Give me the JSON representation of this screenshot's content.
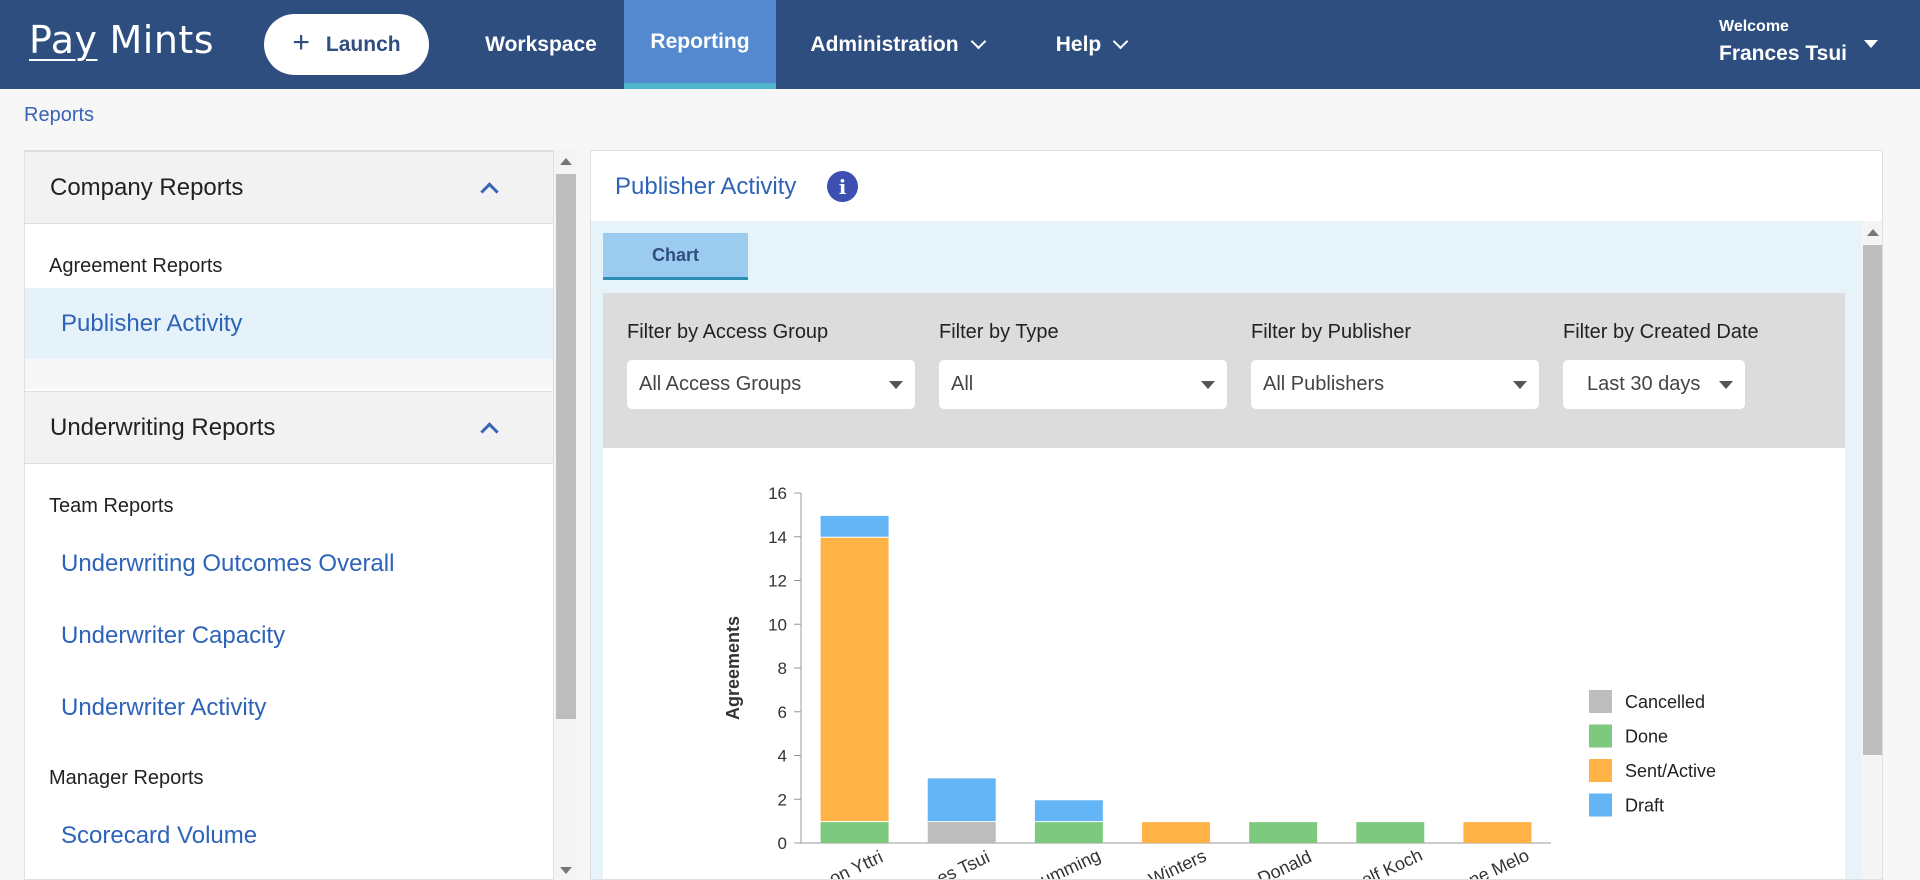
{
  "app": {
    "logo_pay": "Pay",
    "logo_mints": "Mints"
  },
  "header": {
    "launch_label": "Launch",
    "nav": [
      {
        "label": "Workspace"
      },
      {
        "label": "Reporting"
      },
      {
        "label": "Administration"
      },
      {
        "label": "Help"
      }
    ],
    "welcome_label": "Welcome",
    "user_name": "Frances Tsui"
  },
  "breadcrumb": "Reports",
  "sidebar": {
    "sections": [
      {
        "title": "Company Reports",
        "groups": [
          {
            "label": "Agreement Reports",
            "items": [
              "Publisher Activity"
            ]
          }
        ]
      },
      {
        "title": "Underwriting Reports",
        "groups": [
          {
            "label": "Team Reports",
            "items": [
              "Underwriting Outcomes Overall",
              "Underwriter Capacity",
              "Underwriter Activity"
            ]
          },
          {
            "label": "Manager Reports",
            "items": [
              "Scorecard Volume"
            ]
          }
        ]
      }
    ]
  },
  "report": {
    "title": "Publisher Activity",
    "info_icon": "i",
    "tab_label": "Chart",
    "filters": [
      {
        "label": "Filter by Access Group",
        "value": "All Access Groups"
      },
      {
        "label": "Filter by Type",
        "value": "All"
      },
      {
        "label": "Filter by Publisher",
        "value": "All Publishers"
      },
      {
        "label": "Filter by Created Date",
        "value": "Last 30 days"
      }
    ]
  },
  "colors": {
    "nav_bg": "#2e4e80",
    "nav_active": "#5589cf",
    "link": "#2e63b8",
    "cancelled": "#bdbdbd",
    "done": "#7dc97f",
    "sent_active": "#ffb347",
    "draft": "#64b5f6"
  },
  "chart_data": {
    "type": "bar",
    "stacked": true,
    "ylabel": "Agreements",
    "ylim": [
      0,
      16
    ],
    "yticks": [
      0,
      2,
      4,
      6,
      8,
      10,
      12,
      14,
      16
    ],
    "categories": [
      "on Yttri",
      "es Tsui",
      "umming",
      "Winters",
      "Donald",
      "elf Koch",
      "ne Melo"
    ],
    "series": [
      {
        "name": "Cancelled",
        "color": "#bdbdbd",
        "values": [
          0,
          1,
          0,
          0,
          0,
          0,
          0
        ]
      },
      {
        "name": "Done",
        "color": "#7dc97f",
        "values": [
          1,
          0,
          1,
          0,
          1,
          1,
          0
        ]
      },
      {
        "name": "Sent/Active",
        "color": "#ffb347",
        "values": [
          13,
          0,
          0,
          1,
          0,
          0,
          1
        ]
      },
      {
        "name": "Draft",
        "color": "#64b5f6",
        "values": [
          1,
          2,
          1,
          0,
          0,
          0,
          0
        ]
      }
    ],
    "legend_position": "right"
  }
}
